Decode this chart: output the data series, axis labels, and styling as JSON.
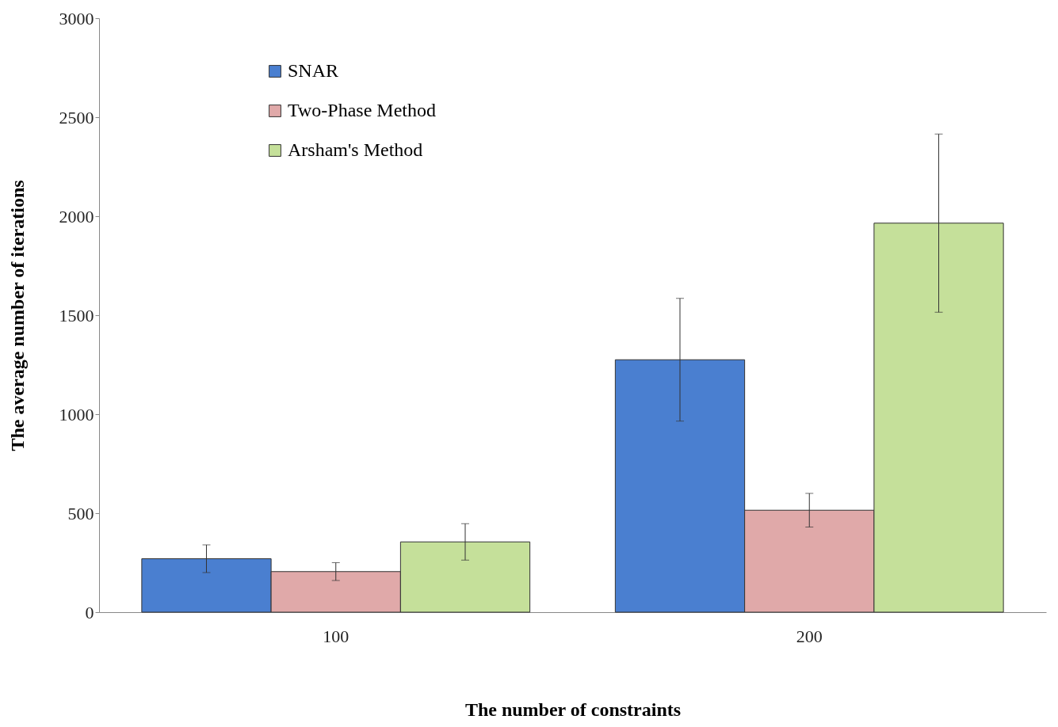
{
  "chart_data": {
    "type": "bar",
    "xlabel": "The number of constraints",
    "ylabel": "The average number of iterations",
    "categories": [
      "100",
      "200"
    ],
    "series": [
      {
        "name": "SNAR",
        "color": "#4a7fd0",
        "values": [
          270,
          1275
        ],
        "errors": [
          70,
          310
        ]
      },
      {
        "name": "Two-Phase  Method",
        "color": "#e0a9a9",
        "values": [
          205,
          515
        ],
        "errors": [
          45,
          85
        ]
      },
      {
        "name": "Arsham's Method",
        "color": "#c5e09a",
        "values": [
          355,
          1965
        ],
        "errors": [
          92,
          450
        ]
      }
    ],
    "ylim": [
      0,
      3000
    ],
    "yticks": [
      0,
      500,
      1000,
      1500,
      2000,
      2500,
      3000
    ],
    "grid": false,
    "legend": "top left"
  }
}
